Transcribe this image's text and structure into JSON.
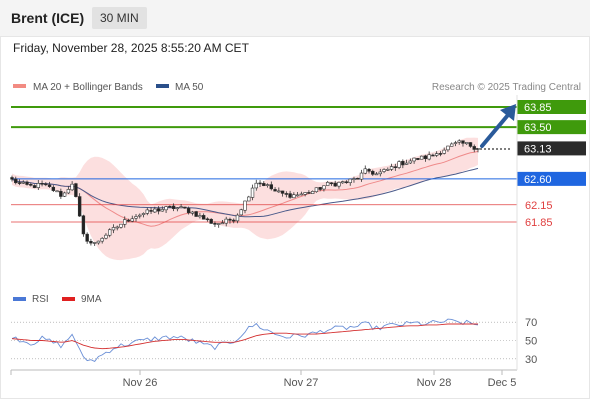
{
  "header": {
    "title": "Brent (ICE)",
    "timeframe": "30 MIN"
  },
  "datetime": "Friday, November 28, 2025 8:55:20 AM CET",
  "legend": {
    "items": [
      {
        "label": "MA 20 + Bollinger Bands",
        "color": "#f28b82"
      },
      {
        "label": "MA 50",
        "color": "#2a4f8a"
      }
    ],
    "credit": "Research © 2025 Trading Central"
  },
  "rsi_legend": [
    {
      "label": "RSI",
      "color": "#4a78d6"
    },
    {
      "label": "9MA",
      "color": "#e02020"
    }
  ],
  "chart_data": {
    "type": "candlestick",
    "price_ylim": [
      61.3,
      64.1
    ],
    "levels": [
      {
        "label": "63.85",
        "value": 63.85,
        "style": "green-bar",
        "color": "#3f9a0c"
      },
      {
        "label": "63.50",
        "value": 63.5,
        "style": "green-bar",
        "color": "#3f9a0c"
      },
      {
        "label": "63.13",
        "value": 63.13,
        "style": "current",
        "color": "#2b2b2b"
      },
      {
        "label": "62.60",
        "value": 62.6,
        "style": "blue-bar",
        "color": "#1f66e0"
      },
      {
        "label": "62.15",
        "value": 62.15,
        "style": "red-line",
        "color": "#e04040"
      },
      {
        "label": "61.85",
        "value": 61.85,
        "style": "red-line",
        "color": "#e04040"
      }
    ],
    "x_ticks": [
      "Nov 26",
      "Nov 27",
      "Nov 28",
      "Dec 5"
    ],
    "price_path": [
      62.58,
      62.5,
      62.47,
      62.5,
      62.42,
      62.3,
      62.55,
      61.62,
      61.45,
      61.6,
      61.72,
      61.85,
      61.95,
      62.0,
      62.05,
      62.08,
      62.1,
      62.08,
      62.0,
      61.9,
      61.82,
      61.85,
      61.92,
      62.2,
      62.55,
      62.5,
      62.38,
      62.32,
      62.32,
      62.35,
      62.4,
      62.5,
      62.52,
      62.55,
      62.6,
      62.75,
      62.68,
      62.75,
      62.85,
      62.9,
      62.95,
      62.98,
      63.05,
      63.15,
      63.22,
      63.2,
      63.13
    ],
    "rsi": {
      "ylim": [
        20,
        80
      ],
      "ticks": [
        70,
        50,
        30
      ],
      "values": [
        55,
        50,
        47,
        52,
        48,
        44,
        58,
        30,
        28,
        35,
        42,
        45,
        48,
        50,
        52,
        53,
        54,
        52,
        49,
        45,
        43,
        46,
        50,
        60,
        68,
        62,
        57,
        54,
        55,
        56,
        58,
        62,
        63,
        64,
        65,
        68,
        63,
        66,
        67,
        68,
        69,
        68,
        70,
        71,
        70,
        69,
        67
      ],
      "ma9": [
        52,
        51,
        50,
        50,
        49,
        48,
        50,
        45,
        42,
        41,
        42,
        43,
        45,
        47,
        49,
        50,
        51,
        51,
        50,
        49,
        48,
        48,
        48,
        51,
        55,
        57,
        58,
        58,
        57,
        57,
        57,
        58,
        59,
        60,
        61,
        62,
        63,
        64,
        65,
        66,
        66,
        67,
        67,
        68,
        68,
        68,
        68
      ]
    }
  }
}
